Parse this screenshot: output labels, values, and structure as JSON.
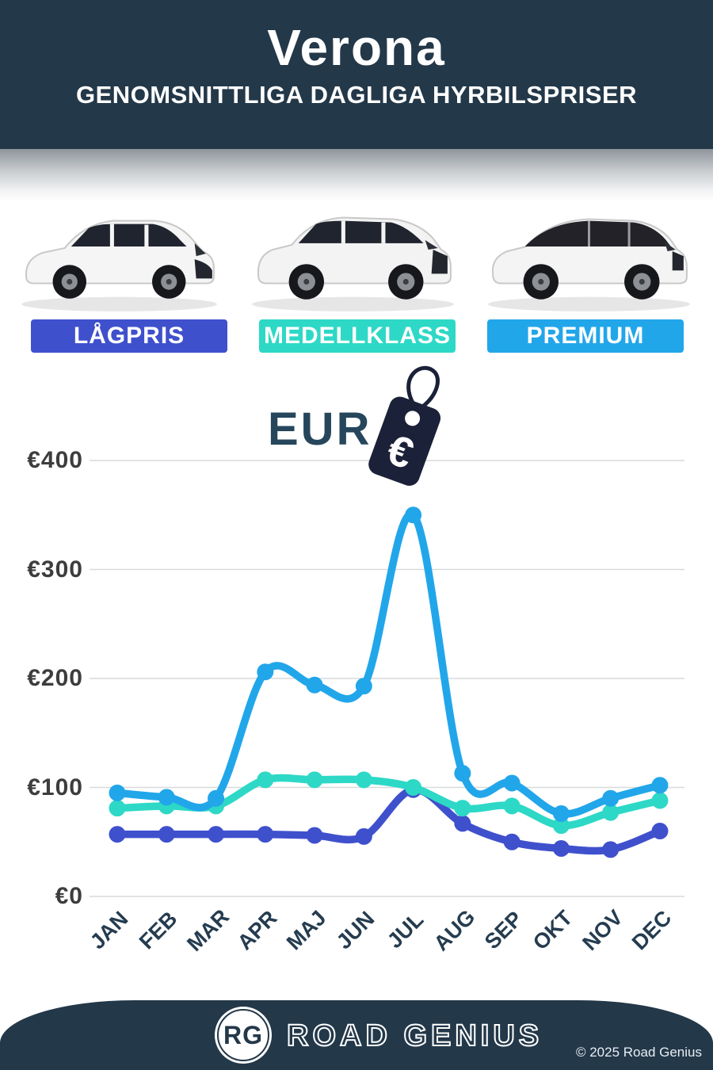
{
  "header": {
    "title": "Verona",
    "subtitle": "GENOMSNITTLIGA DAGLIGA HYRBILSPRISER"
  },
  "categories": [
    {
      "label": "LÅGPRIS",
      "color": "#3f50cd",
      "car_icon": "economy-hatchback-car-icon"
    },
    {
      "label": "MEDELLKLASS",
      "color": "#2dd8c6",
      "car_icon": "midsize-suv-car-icon"
    },
    {
      "label": "PREMIUM",
      "color": "#22a6ea",
      "car_icon": "premium-suv-car-icon"
    }
  ],
  "currency": {
    "label": "EUR",
    "tag_symbol": "€"
  },
  "chart_data": {
    "type": "line",
    "x": [
      "JAN",
      "FEB",
      "MAR",
      "APR",
      "MAJ",
      "JUN",
      "JUL",
      "AUG",
      "SEP",
      "OKT",
      "NOV",
      "DEC"
    ],
    "series": [
      {
        "name": "Lågpris",
        "color": "#3f50cd",
        "values": [
          57,
          57,
          57,
          57,
          56,
          55,
          98,
          67,
          50,
          44,
          43,
          60
        ]
      },
      {
        "name": "Medellklass",
        "color": "#2dd8c6",
        "values": [
          81,
          83,
          83,
          107,
          107,
          107,
          100,
          81,
          83,
          65,
          77,
          88
        ]
      },
      {
        "name": "Premium",
        "color": "#22a6ea",
        "values": [
          95,
          91,
          90,
          206,
          194,
          193,
          350,
          113,
          104,
          76,
          90,
          102
        ]
      }
    ],
    "y_ticks": [
      {
        "label": "€400",
        "value": 400
      },
      {
        "label": "€300",
        "value": 300
      },
      {
        "label": "€200",
        "value": 200
      },
      {
        "label": "€100",
        "value": 100
      },
      {
        "label": "€0",
        "value": 0
      }
    ],
    "ylim": [
      0,
      430
    ],
    "grid": true,
    "legend_position": "none",
    "title": "Verona — Genomsnittliga dagliga hyrbilspriser (EUR)"
  },
  "footer": {
    "logo_initials": "RG",
    "brand": "ROAD GENIUS",
    "copyright": "© 2025 Road Genius"
  }
}
